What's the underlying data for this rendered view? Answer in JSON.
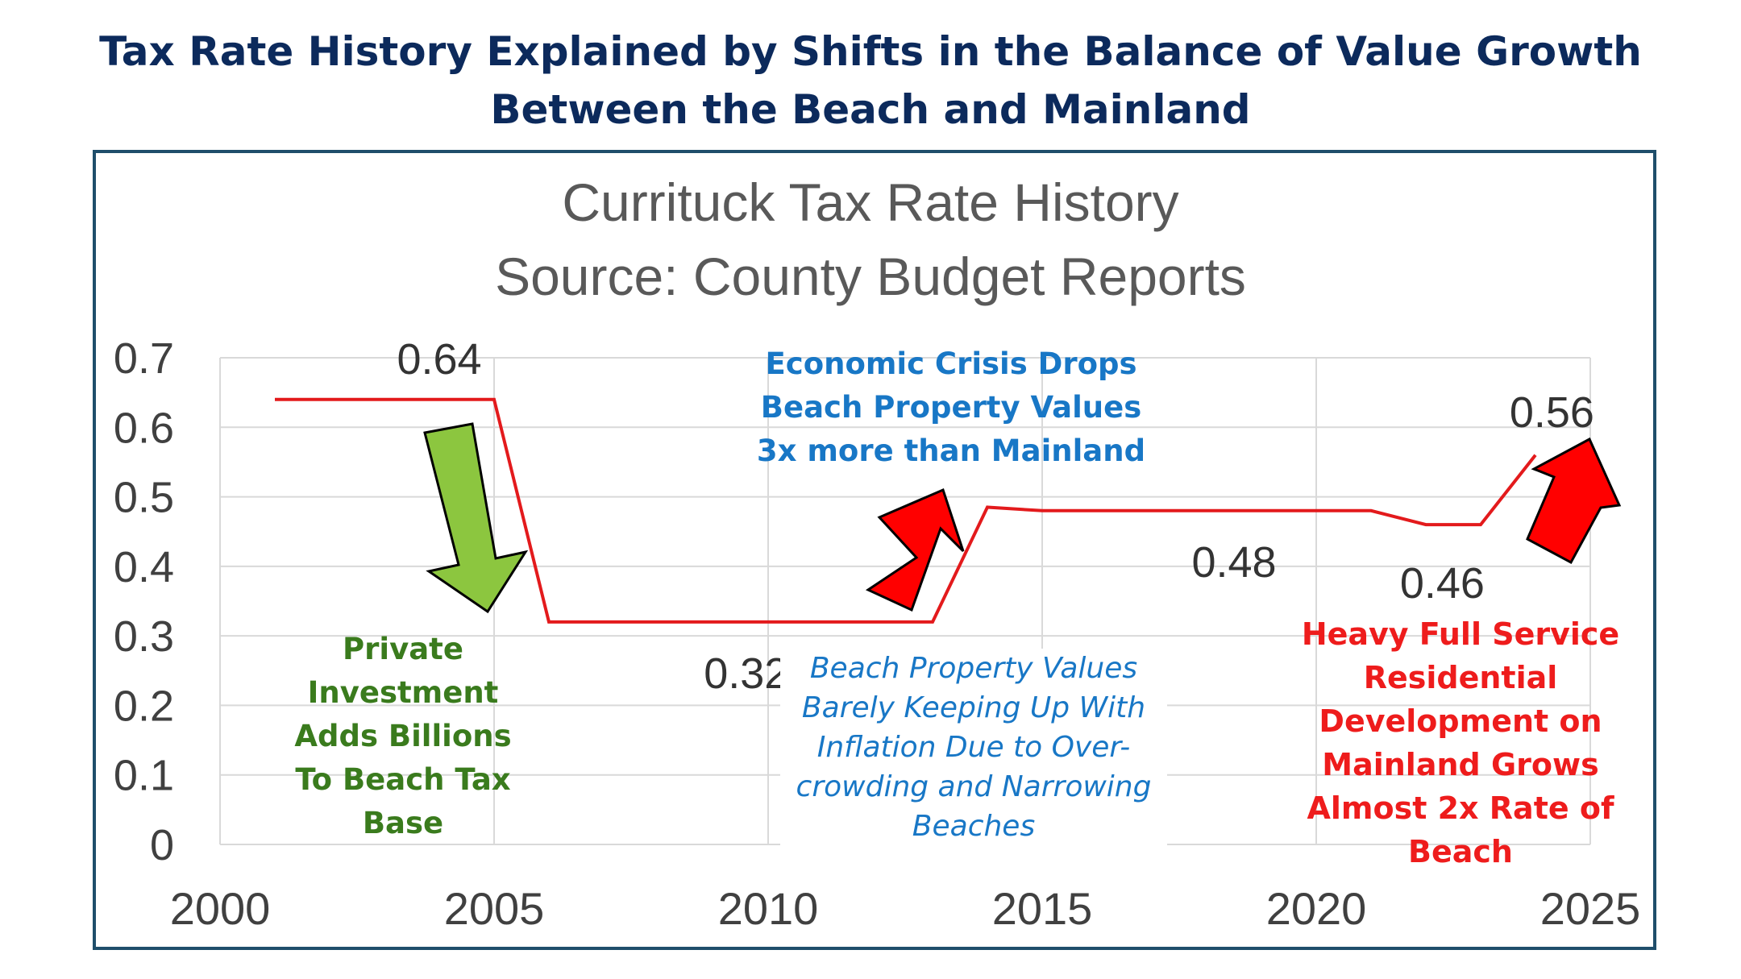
{
  "headline": {
    "line1": "Tax Rate History Explained by Shifts in the Balance of Value Growth",
    "line2": "Between the Beach and Mainland"
  },
  "chart_data": {
    "type": "line",
    "title": "Currituck Tax Rate History",
    "subtitle": "Source: County Budget Reports",
    "xlabel": "",
    "ylabel": "",
    "xlim": [
      2000,
      2025
    ],
    "ylim": [
      0,
      0.7
    ],
    "x_ticks": [
      "2000",
      "2005",
      "2010",
      "2015",
      "2020",
      "2025"
    ],
    "y_ticks": [
      "0",
      "0.1",
      "0.2",
      "0.3",
      "0.4",
      "0.5",
      "0.6",
      "0.7"
    ],
    "grid": true,
    "legend": "none",
    "series": [
      {
        "color": "#e31a1c",
        "points": [
          {
            "x": 2001,
            "y": 0.64
          },
          {
            "x": 2005,
            "y": 0.64
          },
          {
            "x": 2006,
            "y": 0.32
          },
          {
            "x": 2013,
            "y": 0.32
          },
          {
            "x": 2014,
            "y": 0.485
          },
          {
            "x": 2015,
            "y": 0.48
          },
          {
            "x": 2021,
            "y": 0.48
          },
          {
            "x": 2022,
            "y": 0.46
          },
          {
            "x": 2023,
            "y": 0.46
          },
          {
            "x": 2024,
            "y": 0.56
          }
        ]
      }
    ],
    "data_labels": [
      "0.64",
      "0.32",
      "0.48",
      "0.46",
      "0.56"
    ],
    "arrow_colors": {
      "green": "#8cc63f",
      "red": "#ff0000"
    }
  },
  "annotations": {
    "green": [
      "Private",
      "Investment",
      "Adds Billions",
      "To Beach Tax",
      "Base"
    ],
    "blue": [
      "Economic Crisis Drops",
      "Beach Property Values",
      "3x more than Mainland"
    ],
    "italic": [
      "Beach Property Values",
      "Barely  Keeping Up With",
      "Inflation Due to Over-",
      "crowding and Narrowing",
      "Beaches"
    ],
    "red": [
      "Heavy Full Service",
      "Residential",
      "Development on",
      "Mainland Grows",
      "Almost 2x Rate of",
      "Beach"
    ]
  }
}
